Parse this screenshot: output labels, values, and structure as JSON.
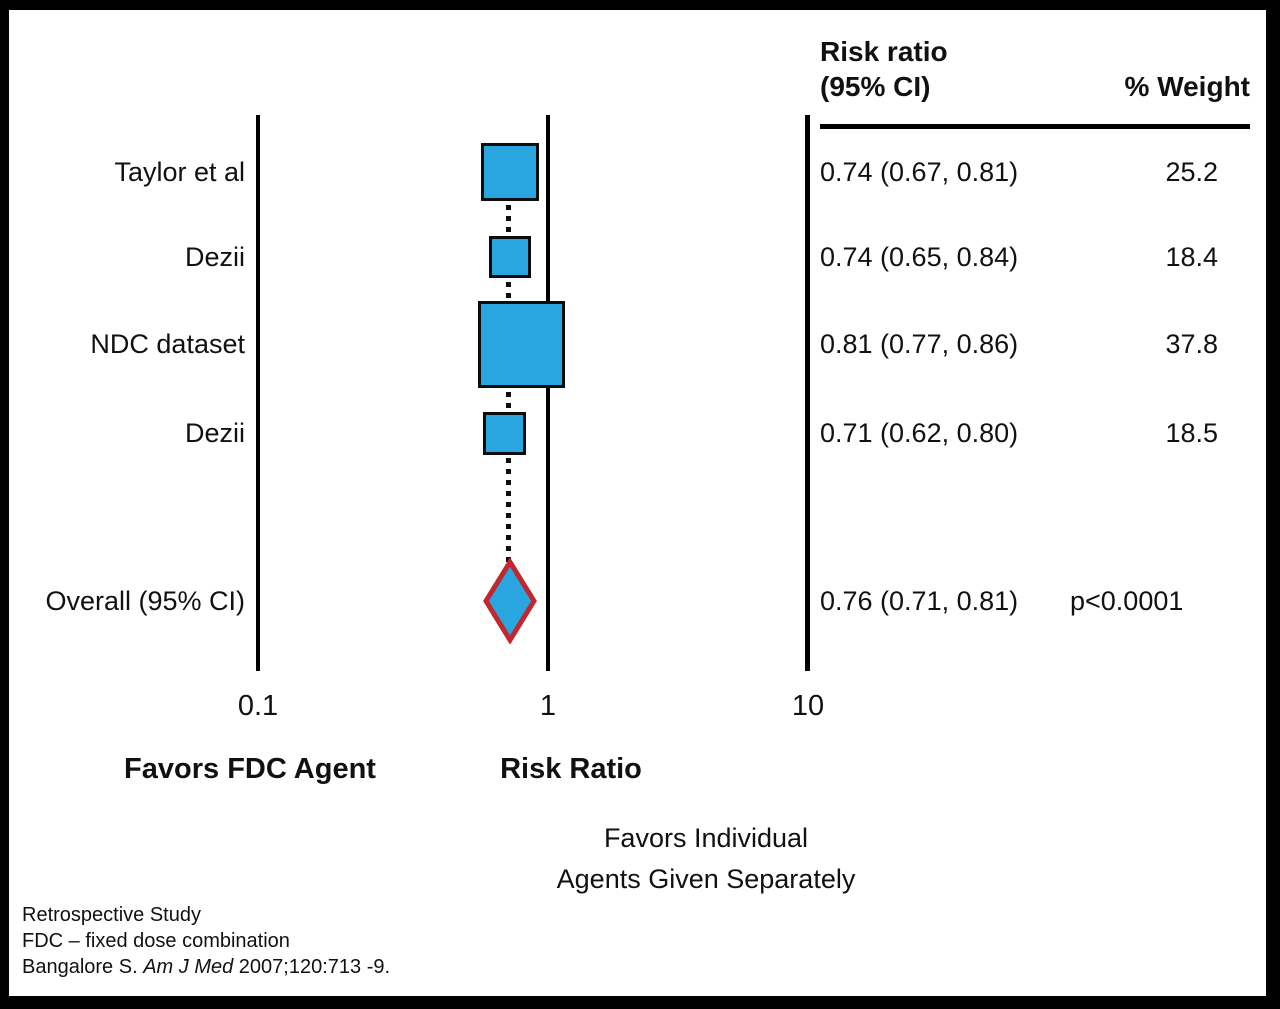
{
  "chart_data": {
    "type": "forest",
    "title": "",
    "x_axis": {
      "scale": "log10",
      "tick_labels": [
        "0.1",
        "1",
        "10"
      ],
      "tick_values": [
        0.1,
        1,
        10
      ],
      "label": "Risk Ratio"
    },
    "columns": {
      "effect_header_line1": "Risk ratio",
      "effect_header_line2": "(95% CI)",
      "weight_header": "% Weight"
    },
    "studies": [
      {
        "label": "Taylor et al",
        "rr": 0.74,
        "ci_low": 0.67,
        "ci_high": 0.81,
        "weight": 25.2
      },
      {
        "label": "Dezii",
        "rr": 0.74,
        "ci_low": 0.65,
        "ci_high": 0.84,
        "weight": 18.4
      },
      {
        "label": "NDC dataset",
        "rr": 0.81,
        "ci_low": 0.77,
        "ci_high": 0.86,
        "weight": 37.8
      },
      {
        "label": "Dezii",
        "rr": 0.71,
        "ci_low": 0.62,
        "ci_high": 0.8,
        "weight": 18.5
      }
    ],
    "overall": {
      "label": "Overall (95% CI)",
      "rr": 0.76,
      "ci_low": 0.71,
      "ci_high": 0.81,
      "p_text": "p<0.0001"
    },
    "direction_labels": {
      "left_bold": "Favors FDC Agent",
      "axis_bold": "Risk Ratio",
      "right_line1": "Favors Individual",
      "right_line2": "Agents Given Separately"
    },
    "footnotes": {
      "line1": "Retrospective Study",
      "line2": "FDC – fixed dose combination",
      "line3_prefix": "Bangalore S. ",
      "line3_italic": "Am J Med",
      "line3_suffix": " 2007;120:713 -9."
    },
    "colors": {
      "marker_fill": "#29A5DF",
      "marker_border": "#0d0d0d",
      "diamond_stroke": "#C1272D",
      "axis": "#000000"
    }
  }
}
